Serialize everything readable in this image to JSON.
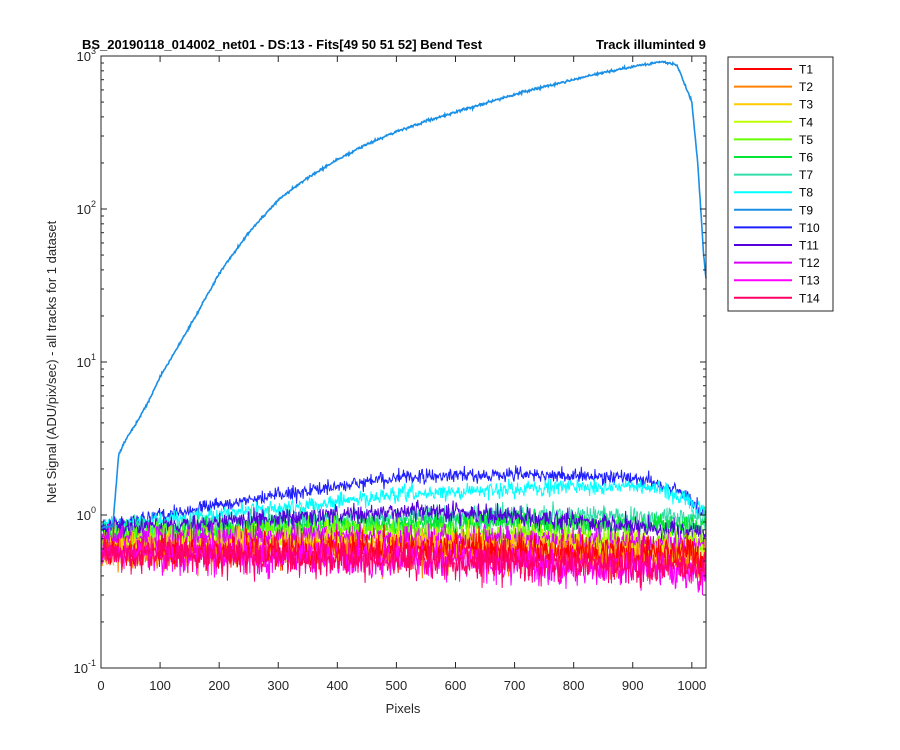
{
  "chart_data": {
    "type": "line",
    "title_parts": {
      "main": "BS_20190118_014002_net01 - DS:13 - Fits[49  50  51  52]   Bend Test",
      "right": "Track illuminted 9"
    },
    "xlabel": "Pixels",
    "ylabel": "Net Signal (ADU/pix/sec) - all tracks for 1 dataset",
    "xlim": [
      0,
      1024
    ],
    "ylim": [
      0.1,
      1000
    ],
    "yscale": "log",
    "grid": false,
    "legend_position": "outside-top-right",
    "x_ticks": [
      "0",
      "100",
      "200",
      "300",
      "400",
      "500",
      "600",
      "700",
      "800",
      "900",
      "1000"
    ],
    "y_ticks": [
      {
        "base": "10",
        "exp": "-1"
      },
      {
        "base": "10",
        "exp": "0"
      },
      {
        "base": "10",
        "exp": "1"
      },
      {
        "base": "10",
        "exp": "2"
      },
      {
        "base": "10",
        "exp": "3"
      }
    ],
    "illuminated_series": {
      "name": "T9",
      "points": [
        [
          0,
          0.82
        ],
        [
          20,
          0.85
        ],
        [
          30,
          2.5
        ],
        [
          40,
          3.0
        ],
        [
          60,
          4.0
        ],
        [
          80,
          5.5
        ],
        [
          100,
          8
        ],
        [
          150,
          17
        ],
        [
          200,
          38
        ],
        [
          250,
          70
        ],
        [
          300,
          115
        ],
        [
          350,
          160
        ],
        [
          400,
          210
        ],
        [
          450,
          265
        ],
        [
          500,
          320
        ],
        [
          550,
          375
        ],
        [
          600,
          430
        ],
        [
          650,
          490
        ],
        [
          700,
          560
        ],
        [
          750,
          630
        ],
        [
          800,
          700
        ],
        [
          850,
          780
        ],
        [
          900,
          850
        ],
        [
          950,
          920
        ],
        [
          975,
          870
        ],
        [
          1000,
          500
        ],
        [
          1010,
          200
        ],
        [
          1020,
          50
        ],
        [
          1024,
          35
        ]
      ]
    },
    "series": [
      {
        "name": "T1",
        "color": "#ff0000",
        "profile": [
          [
            0,
            0.58
          ],
          [
            512,
            0.6
          ],
          [
            1024,
            0.55
          ]
        ],
        "noise": 0.22
      },
      {
        "name": "T2",
        "color": "#ff8000",
        "profile": [
          [
            0,
            0.55
          ],
          [
            512,
            0.58
          ],
          [
            1024,
            0.5
          ]
        ],
        "noise": 0.22
      },
      {
        "name": "T3",
        "color": "#ffcc00",
        "profile": [
          [
            0,
            0.6
          ],
          [
            512,
            0.65
          ],
          [
            1024,
            0.55
          ]
        ],
        "noise": 0.2
      },
      {
        "name": "T4",
        "color": "#bfff00",
        "profile": [
          [
            0,
            0.65
          ],
          [
            512,
            0.72
          ],
          [
            1024,
            0.62
          ]
        ],
        "noise": 0.18
      },
      {
        "name": "T5",
        "color": "#66ff00",
        "profile": [
          [
            0,
            0.7
          ],
          [
            400,
            0.8
          ],
          [
            650,
            0.75
          ],
          [
            1024,
            0.65
          ]
        ],
        "noise": 0.16
      },
      {
        "name": "T6",
        "color": "#00e633",
        "profile": [
          [
            0,
            0.75
          ],
          [
            400,
            0.85
          ],
          [
            700,
            0.9
          ],
          [
            1024,
            0.85
          ]
        ],
        "noise": 0.15
      },
      {
        "name": "T7",
        "color": "#33ddaa",
        "profile": [
          [
            0,
            0.8
          ],
          [
            400,
            0.95
          ],
          [
            700,
            1.0
          ],
          [
            1024,
            0.95
          ]
        ],
        "noise": 0.14
      },
      {
        "name": "T8",
        "color": "#00ffff",
        "profile": [
          [
            0,
            0.85
          ],
          [
            300,
            1.1
          ],
          [
            500,
            1.35
          ],
          [
            800,
            1.55
          ],
          [
            950,
            1.5
          ],
          [
            1024,
            1.05
          ]
        ],
        "noise": 0.1
      },
      {
        "name": "T10",
        "color": "#1f1fff",
        "profile": [
          [
            0,
            0.85
          ],
          [
            300,
            1.35
          ],
          [
            500,
            1.75
          ],
          [
            700,
            1.85
          ],
          [
            900,
            1.75
          ],
          [
            980,
            1.45
          ],
          [
            1024,
            1.0
          ]
        ],
        "noise": 0.09
      },
      {
        "name": "T11",
        "color": "#5500dd",
        "profile": [
          [
            0,
            0.8
          ],
          [
            300,
            0.95
          ],
          [
            550,
            1.08
          ],
          [
            800,
            0.92
          ],
          [
            1024,
            0.75
          ]
        ],
        "noise": 0.13
      },
      {
        "name": "T12",
        "color": "#dd00ff",
        "profile": [
          [
            0,
            0.7
          ],
          [
            400,
            0.72
          ],
          [
            700,
            0.7
          ],
          [
            1024,
            0.6
          ]
        ],
        "noise": 0.18
      },
      {
        "name": "T13",
        "color": "#ff00ff",
        "profile": [
          [
            0,
            0.55
          ],
          [
            512,
            0.52
          ],
          [
            1024,
            0.42
          ]
        ],
        "noise": 0.25
      },
      {
        "name": "T14",
        "color": "#ff0066",
        "profile": [
          [
            0,
            0.55
          ],
          [
            512,
            0.5
          ],
          [
            1024,
            0.45
          ]
        ],
        "noise": 0.24
      }
    ],
    "legend": [
      {
        "name": "T1",
        "color": "#ff0000"
      },
      {
        "name": "T2",
        "color": "#ff8000"
      },
      {
        "name": "T3",
        "color": "#ffcc00"
      },
      {
        "name": "T4",
        "color": "#bfff00"
      },
      {
        "name": "T5",
        "color": "#66ff00"
      },
      {
        "name": "T6",
        "color": "#00e633"
      },
      {
        "name": "T7",
        "color": "#33ddaa"
      },
      {
        "name": "T8",
        "color": "#00ffff"
      },
      {
        "name": "T9",
        "color": "#1a8fe6"
      },
      {
        "name": "T10",
        "color": "#1f1fff"
      },
      {
        "name": "T11",
        "color": "#5500dd"
      },
      {
        "name": "T12",
        "color": "#dd00ff"
      },
      {
        "name": "T13",
        "color": "#ff00ff"
      },
      {
        "name": "T14",
        "color": "#ff0066"
      }
    ]
  }
}
